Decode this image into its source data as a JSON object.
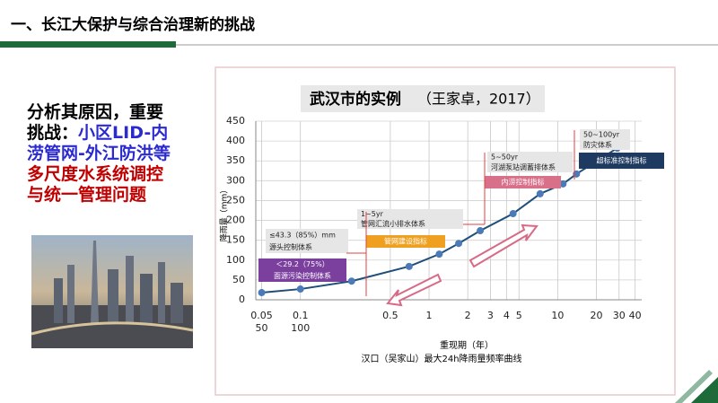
{
  "slide_title": "一、长江大保护与综合治理新的挑战",
  "left_text": [
    [
      {
        "text": "分析其原因，重要",
        "color": "#000000"
      }
    ],
    [
      {
        "text": "挑战：",
        "color": "#000000"
      },
      {
        "text": "小区LID-内",
        "color": "#2a2ad0"
      }
    ],
    [
      {
        "text": "涝管网-外江防洪等",
        "color": "#2a2ad0"
      }
    ],
    [
      {
        "text": "多尺度水系统调控",
        "color": "#c00000"
      }
    ],
    [
      {
        "text": "与统一管理问题",
        "color": "#c00000"
      }
    ]
  ],
  "chart_data": {
    "type": "line",
    "title": "武汉市的实例",
    "title_note": "（王家卓，2017）",
    "y_label": "降雨量（mm）",
    "x_label": "重现期（年）",
    "caption": "汉口（吴家山）最大24h降雨量频率曲线",
    "x_scale": "log",
    "grid": true,
    "series": [
      {
        "color": "#1f4e79",
        "marker_color": "#4a7ab8",
        "x": [
          0.05,
          0.1,
          0.25,
          0.7,
          1.2,
          1.7,
          2.5,
          4.5,
          7.3,
          11,
          14,
          29
        ],
        "values": [
          18,
          27,
          47,
          84,
          115,
          142,
          174,
          217,
          267,
          292,
          317,
          382
        ]
      }
    ],
    "xlim": [
      0.045,
      45
    ],
    "xticks": [
      0.05,
      0.1,
      0.5,
      1,
      2,
      3,
      4,
      5,
      10,
      20,
      30,
      40
    ],
    "xtick_sublabels": [
      "50",
      "100"
    ],
    "ylim": [
      0,
      450
    ],
    "yticks": [
      0,
      50,
      100,
      150,
      200,
      250,
      300,
      350,
      400,
      450
    ],
    "annotations": [
      {
        "lines": [
          "≤43.3（85%）mm",
          "源头控制体系"
        ]
      },
      {
        "lines": [
          "＜29.2（75%）",
          "面源污染控制体系"
        ]
      },
      {
        "lines": [
          "1~5yr",
          "管网汇流小排水体系"
        ]
      },
      {
        "lines": [
          "管网建设指标"
        ]
      },
      {
        "lines": [
          "5~50yr",
          "河湖泵站调蓄排体系"
        ]
      },
      {
        "lines": [
          "内涝控制指标"
        ]
      },
      {
        "lines": [
          "50~100yr",
          "防灾体系"
        ]
      },
      {
        "lines": [
          "超标准控制指标"
        ]
      }
    ]
  }
}
